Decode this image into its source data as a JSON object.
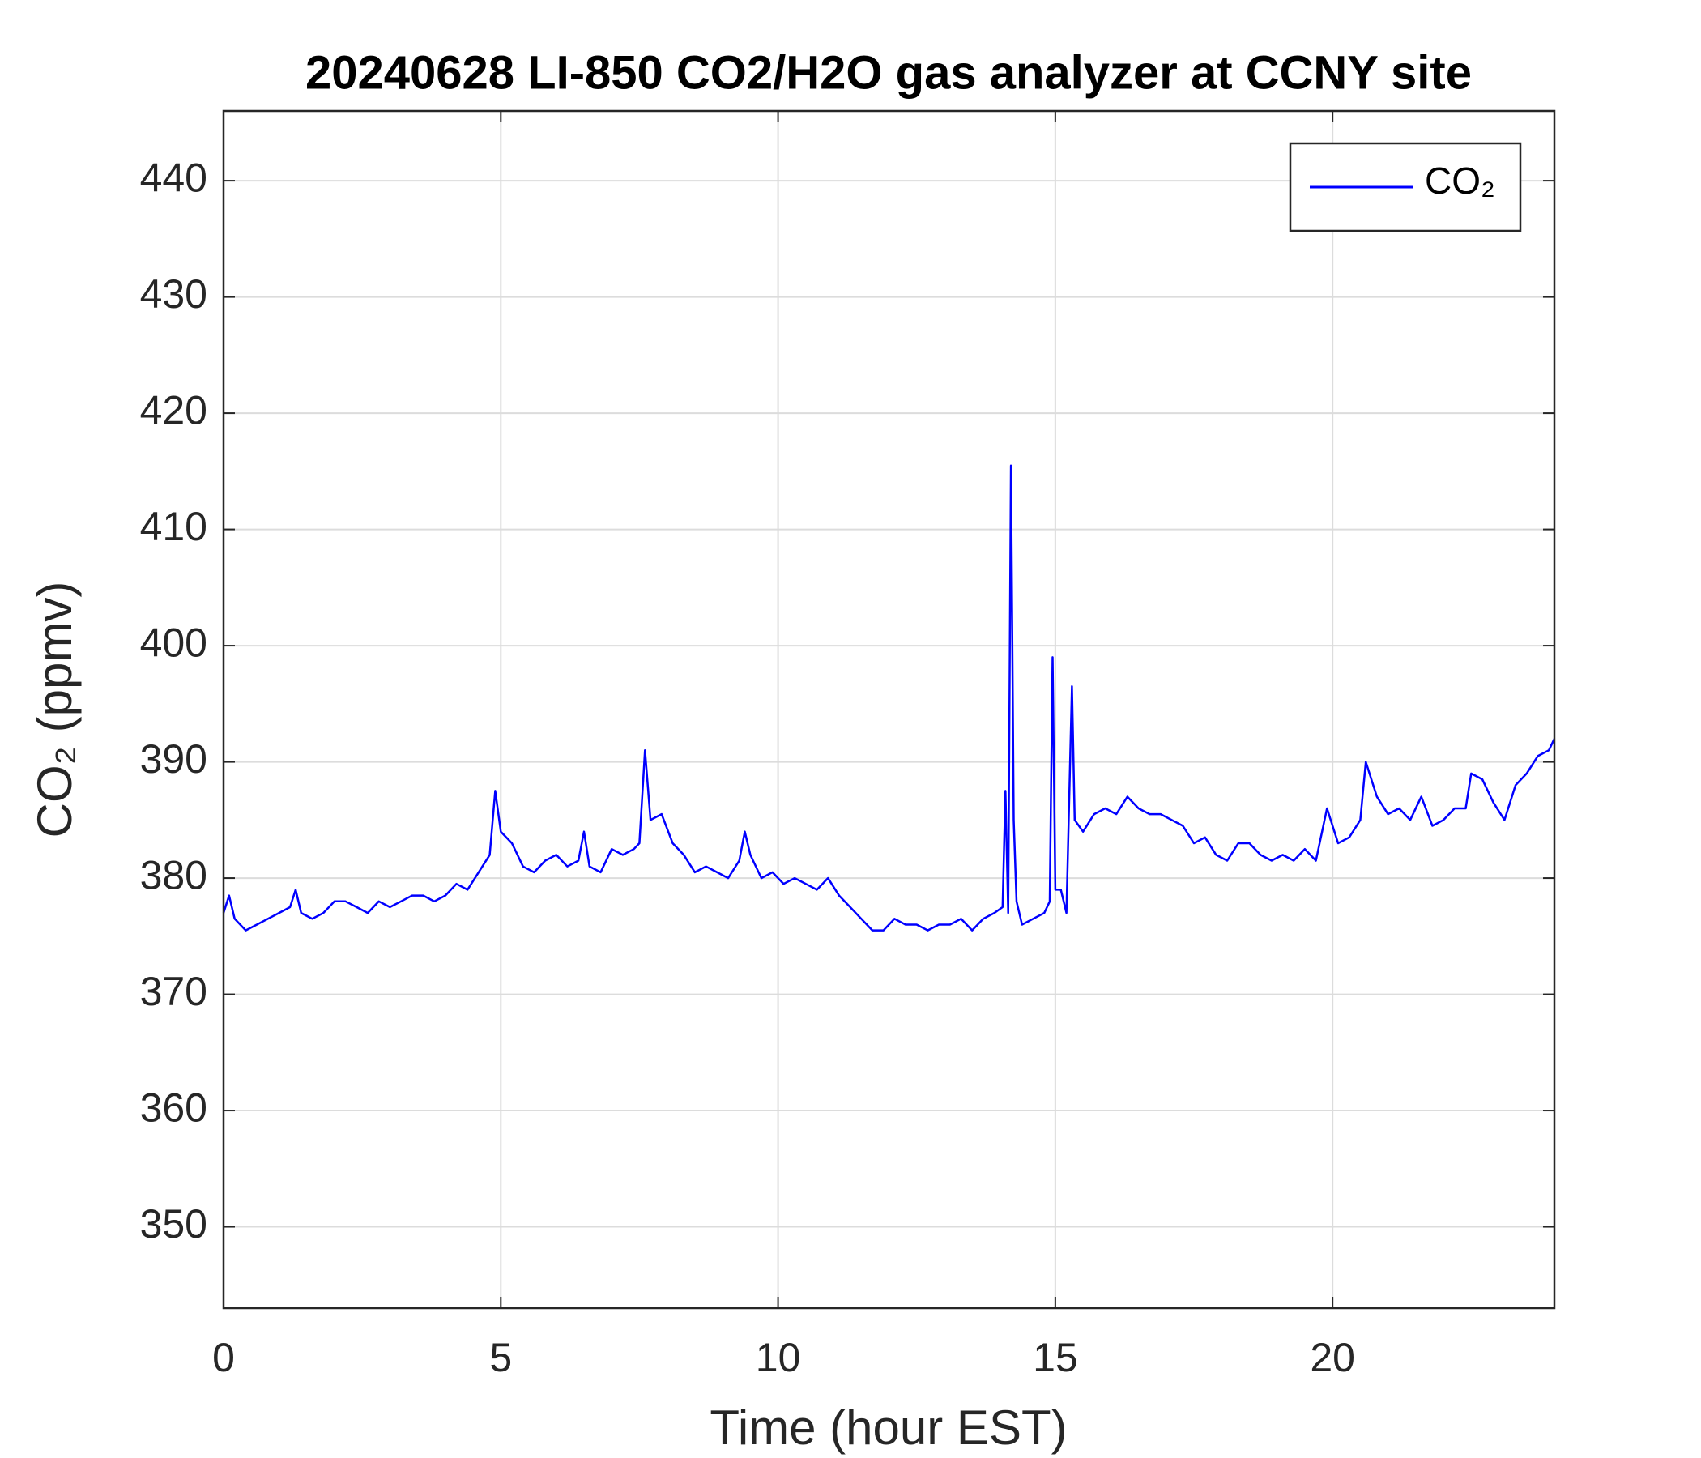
{
  "chart_data": {
    "type": "line",
    "title": "20240628 LI-850 CO2/H2O gas analyzer at CCNY site",
    "x_label": "Time (hour EST)",
    "y_label": "CO₂ (ppmv)",
    "xlim": [
      0,
      24
    ],
    "xticks": [
      0,
      5,
      10,
      15,
      20
    ],
    "ylim": [
      343,
      446
    ],
    "yticks": [
      350,
      360,
      370,
      380,
      390,
      400,
      410,
      420,
      430,
      440
    ],
    "grid": true,
    "legend": "upper right",
    "x": [
      0,
      0.1,
      0.2,
      0.4,
      0.6,
      0.8,
      1,
      1.2,
      1.3,
      1.4,
      1.6,
      1.8,
      2,
      2.2,
      2.4,
      2.6,
      2.8,
      3,
      3.2,
      3.4,
      3.6,
      3.8,
      4,
      4.2,
      4.4,
      4.6,
      4.8,
      4.9,
      5,
      5.2,
      5.4,
      5.6,
      5.8,
      6,
      6.2,
      6.4,
      6.5,
      6.6,
      6.8,
      7,
      7.2,
      7.4,
      7.5,
      7.6,
      7.7,
      7.9,
      8.1,
      8.3,
      8.5,
      8.7,
      8.9,
      9.1,
      9.3,
      9.4,
      9.5,
      9.7,
      9.9,
      10.1,
      10.3,
      10.5,
      10.7,
      10.9,
      11.1,
      11.3,
      11.5,
      11.7,
      11.9,
      12.1,
      12.3,
      12.5,
      12.7,
      12.9,
      13.1,
      13.3,
      13.5,
      13.7,
      13.9,
      14.05,
      14.1,
      14.15,
      14.2,
      14.25,
      14.3,
      14.4,
      14.6,
      14.8,
      14.9,
      14.95,
      15,
      15.1,
      15.2,
      15.3,
      15.35,
      15.5,
      15.7,
      15.9,
      16.1,
      16.3,
      16.5,
      16.7,
      16.9,
      17.1,
      17.3,
      17.5,
      17.7,
      17.9,
      18.1,
      18.3,
      18.5,
      18.7,
      18.9,
      19.1,
      19.3,
      19.5,
      19.7,
      19.9,
      20.1,
      20.3,
      20.5,
      20.6,
      20.8,
      21,
      21.2,
      21.4,
      21.6,
      21.8,
      22,
      22.2,
      22.4,
      22.5,
      22.7,
      22.9,
      23.1,
      23.3,
      23.5,
      23.7,
      23.9,
      24
    ],
    "series": [
      {
        "name": "CO₂",
        "color": "#0000ff",
        "values": [
          377,
          378.5,
          376.5,
          375.5,
          376,
          376.5,
          377,
          377.5,
          379,
          377,
          376.5,
          377,
          378,
          378,
          377.5,
          377,
          378,
          377.5,
          378,
          378.5,
          378.5,
          378,
          378.5,
          379.5,
          379,
          380.5,
          382,
          387.5,
          384,
          383,
          381,
          380.5,
          381.5,
          382,
          381,
          381.5,
          384,
          381,
          380.5,
          382.5,
          382,
          382.5,
          383,
          391,
          385,
          385.5,
          383,
          382,
          380.5,
          381,
          380.5,
          380,
          381.5,
          384,
          382,
          380,
          380.5,
          379.5,
          380,
          379.5,
          379,
          380,
          378.5,
          377.5,
          376.5,
          375.5,
          375.5,
          376.5,
          376,
          376,
          375.5,
          376,
          376,
          376.5,
          375.5,
          376.5,
          377,
          377.5,
          387.5,
          377,
          415.5,
          385,
          378,
          376,
          376.5,
          377,
          378,
          399,
          379,
          379,
          377,
          396.5,
          385,
          384,
          385.5,
          386,
          385.5,
          387,
          386,
          385.5,
          385.5,
          385,
          384.5,
          383,
          383.5,
          382,
          381.5,
          383,
          383,
          382,
          381.5,
          382,
          381.5,
          382.5,
          381.5,
          386,
          383,
          383.5,
          385,
          390,
          387,
          385.5,
          386,
          385,
          387,
          384.5,
          385,
          386,
          386,
          389,
          388.5,
          386.5,
          385,
          388,
          389,
          390.5,
          391,
          392
        ]
      }
    ]
  }
}
